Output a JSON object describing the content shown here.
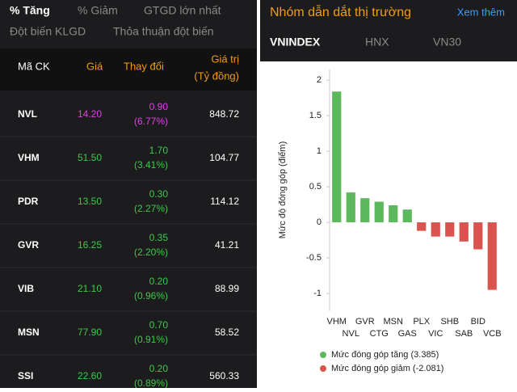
{
  "tabs": {
    "items": [
      "% Tăng",
      "% Giảm",
      "GTGD lớn nhất",
      "Đột biến KLGD",
      "Thỏa thuận đột biến"
    ],
    "active": 0
  },
  "table": {
    "header": [
      "Mã CK",
      "Giá",
      "Thay đổi",
      "Giá trị",
      "(Tỷ đồng)"
    ],
    "rows": [
      {
        "cells": [
          "NVL",
          "14.20",
          "0.90",
          "(6.77%)",
          "848.72"
        ],
        "color": "#e040e8"
      },
      {
        "cells": [
          "VHM",
          "51.50",
          "1.70",
          "(3.41%)",
          "104.77"
        ],
        "color": "#3ec84a"
      },
      {
        "cells": [
          "PDR",
          "13.50",
          "0.30",
          "(2.27%)",
          "114.12"
        ],
        "color": "#3ec84a"
      },
      {
        "cells": [
          "GVR",
          "16.25",
          "0.35",
          "(2.20%)",
          "41.21"
        ],
        "color": "#3ec84a"
      },
      {
        "cells": [
          "VIB",
          "21.10",
          "0.20",
          "(0.96%)",
          "88.99"
        ],
        "color": "#3ec84a"
      },
      {
        "cells": [
          "MSN",
          "77.90",
          "0.70",
          "(0.91%)",
          "58.52"
        ],
        "color": "#3ec84a"
      },
      {
        "cells": [
          "SSI",
          "22.60",
          "0.20",
          "(0.89%)",
          "560.33"
        ],
        "color": "#3ec84a"
      }
    ]
  },
  "panel": {
    "title": "Nhóm dẫn dắt thị trường",
    "link": "Xem thêm",
    "tabs": [
      "VNINDEX",
      "HNX",
      "VN30"
    ],
    "active": 0
  },
  "chart_data": {
    "type": "bar",
    "y_label": "Mức độ đóng góp (điểm)",
    "categories": [
      "VHM",
      "NVL",
      "GVR",
      "CTG",
      "MSN",
      "GAS",
      "PLX",
      "VIC",
      "SHB",
      "SAB",
      "BID",
      "VCB"
    ],
    "values": [
      1.84,
      0.42,
      0.34,
      0.29,
      0.24,
      0.18,
      -0.12,
      -0.2,
      -0.2,
      -0.27,
      -0.38,
      -0.95
    ],
    "positive_color": "#5cb85c",
    "negative_color": "#d9534f",
    "ylim": [
      -1.25,
      2.15
    ],
    "yticks": [
      -1,
      -0.5,
      0,
      0.5,
      1,
      1.5,
      2
    ],
    "legend": [
      {
        "label": "Mức đóng góp tăng (3.385)",
        "color": "#5cb85c"
      },
      {
        "label": "Mức đóng góp giảm (-2.081)",
        "color": "#d9534f"
      }
    ]
  }
}
